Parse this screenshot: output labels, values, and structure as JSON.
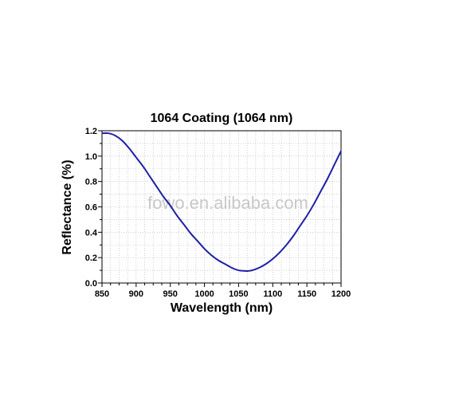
{
  "chart_data": {
    "type": "line",
    "title": "1064 Coating (1064 nm)",
    "xlabel": "Wavelength (nm)",
    "ylabel": "Reflectance (%)",
    "xlim": [
      850,
      1200
    ],
    "ylim": [
      0,
      1.2
    ],
    "x_ticks": [
      "850",
      "900",
      "950",
      "1000",
      "1050",
      "1100",
      "1150",
      "1200"
    ],
    "y_ticks": [
      "0.0",
      "0.2",
      "0.4",
      "0.6",
      "0.8",
      "1.0",
      "1.2"
    ],
    "grid": true,
    "line_color": "#1f1fa6",
    "series": [
      {
        "x": [
          850,
          860,
          870,
          880,
          890,
          900,
          910,
          920,
          930,
          940,
          950,
          960,
          970,
          980,
          990,
          1000,
          1010,
          1020,
          1030,
          1040,
          1050,
          1060,
          1064,
          1070,
          1080,
          1090,
          1100,
          1110,
          1120,
          1130,
          1140,
          1150,
          1160,
          1170,
          1180,
          1190,
          1200
        ],
        "values": [
          1.18,
          1.18,
          1.16,
          1.12,
          1.06,
          0.99,
          0.92,
          0.84,
          0.76,
          0.68,
          0.61,
          0.53,
          0.46,
          0.39,
          0.33,
          0.27,
          0.22,
          0.18,
          0.15,
          0.12,
          0.1,
          0.095,
          0.095,
          0.1,
          0.12,
          0.15,
          0.19,
          0.24,
          0.3,
          0.37,
          0.45,
          0.53,
          0.62,
          0.72,
          0.82,
          0.93,
          1.04
        ]
      }
    ]
  },
  "watermark": "fowo.en.alibaba.com"
}
